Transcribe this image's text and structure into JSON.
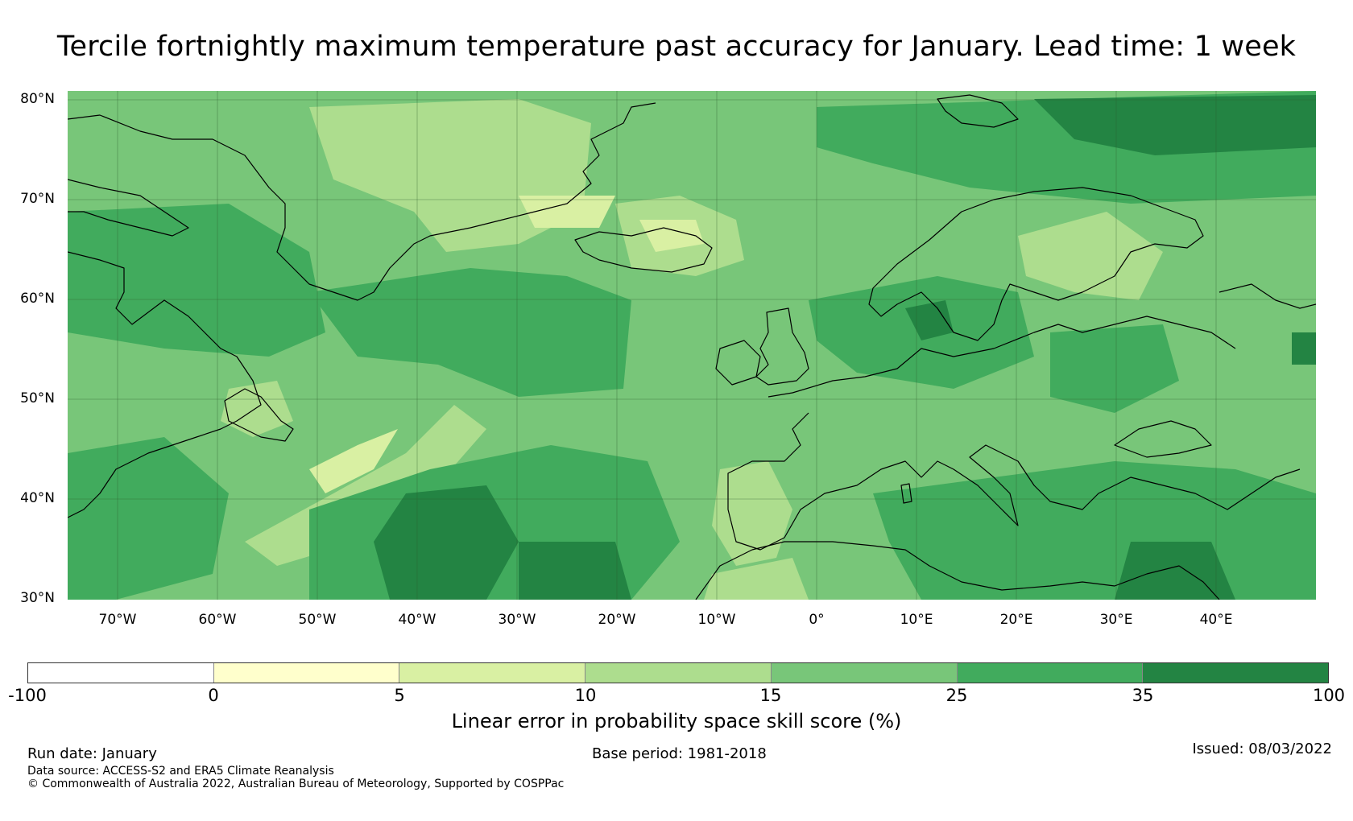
{
  "title": "Tercile fortnightly maximum temperature past accuracy for January. Lead time: 1 week",
  "map": {
    "region": "North Atlantic and Europe",
    "lat_range": [
      30,
      80
    ],
    "lon_range": [
      -75,
      50
    ],
    "lat_labels": [
      "80°N",
      "70°N",
      "60°N",
      "50°N",
      "40°N",
      "30°N"
    ],
    "lon_labels": [
      "70°W",
      "60°W",
      "50°W",
      "40°W",
      "30°W",
      "20°W",
      "10°W",
      "0°",
      "10°E",
      "20°E",
      "30°E",
      "40°E"
    ],
    "colors": {
      "below_0": "#ffffff",
      "c0_5": "#ffffcc",
      "c5_10": "#d9f0a3",
      "c10_15": "#addd8e",
      "c15_25": "#78c679",
      "c25_35": "#41ab5d",
      "c35_100": "#238443",
      "coast": "#000000",
      "grid": "#3d6b3d"
    }
  },
  "colorbar": {
    "ticks": [
      "-100",
      "0",
      "5",
      "10",
      "15",
      "25",
      "35",
      "100"
    ],
    "segment_colors": [
      "#ffffff",
      "#ffffcc",
      "#d9f0a3",
      "#addd8e",
      "#78c679",
      "#41ab5d",
      "#238443"
    ],
    "label": "Linear error in probability space skill score (%)"
  },
  "footer": {
    "run_date": "Run date: January",
    "base_period": "Base period: 1981-2018",
    "issued": "Issued: 08/03/2022",
    "data_source": "Data source: ACCESS-S2 and ERA5 Climate Reanalysis",
    "copyright": "© Commonwealth of Australia 2022, Australian Bureau of Meteorology, Supported by COSPPac"
  }
}
